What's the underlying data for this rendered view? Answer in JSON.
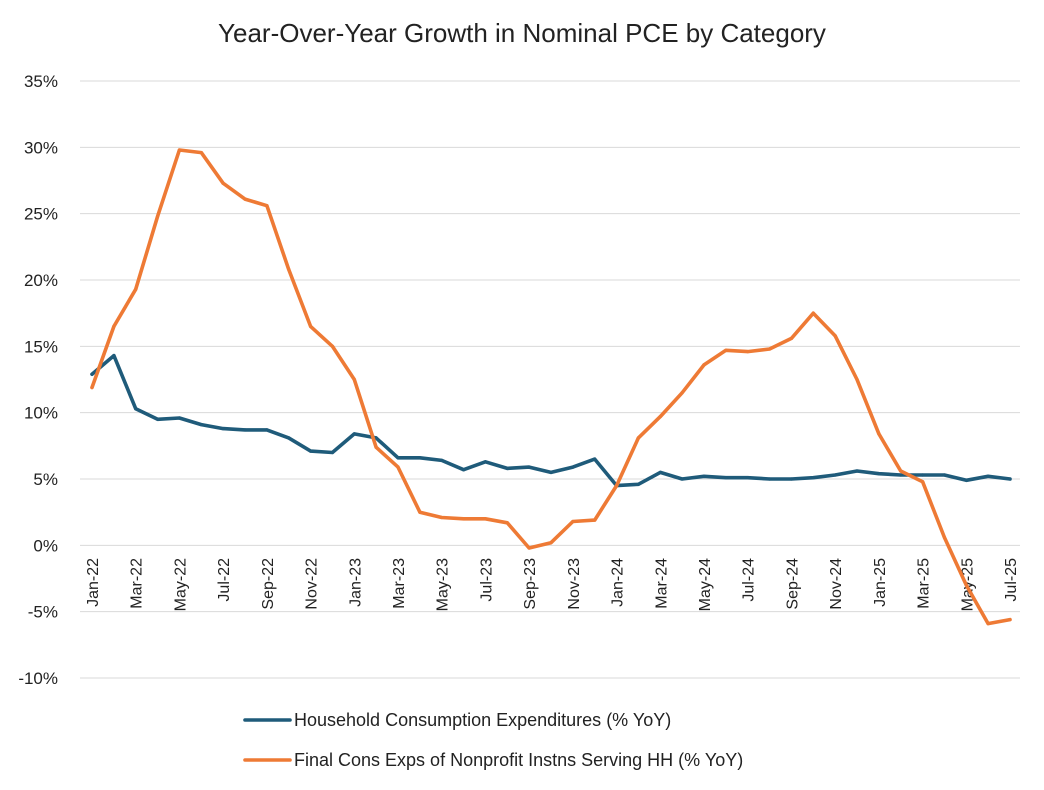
{
  "chart_data": {
    "type": "line",
    "title": "Year-Over-Year Growth in Nominal PCE by Category",
    "xlabel": "",
    "ylabel": "",
    "ylim": [
      -10,
      35
    ],
    "ytick_values": [
      -10,
      -5,
      0,
      5,
      10,
      15,
      20,
      25,
      30,
      35
    ],
    "ytick_labels": [
      "-10%",
      "-5%",
      "0%",
      "5%",
      "10%",
      "15%",
      "20%",
      "25%",
      "30%",
      "35%"
    ],
    "categories": [
      "Jan-22",
      "Feb-22",
      "Mar-22",
      "Apr-22",
      "May-22",
      "Jun-22",
      "Jul-22",
      "Aug-22",
      "Sep-22",
      "Oct-22",
      "Nov-22",
      "Dec-22",
      "Jan-23",
      "Feb-23",
      "Mar-23",
      "Apr-23",
      "May-23",
      "Jun-23",
      "Jul-23",
      "Aug-23",
      "Sep-23",
      "Oct-23",
      "Nov-23",
      "Dec-23",
      "Jan-24",
      "Feb-24",
      "Mar-24",
      "Apr-24",
      "May-24",
      "Jun-24",
      "Jul-24",
      "Aug-24",
      "Sep-24",
      "Oct-24",
      "Nov-24",
      "Dec-24",
      "Jan-25",
      "Feb-25",
      "Mar-25",
      "Apr-25",
      "May-25",
      "Jun-25",
      "Jul-25"
    ],
    "xtick_labels": [
      "Jan-22",
      "Mar-22",
      "May-22",
      "Jul-22",
      "Sep-22",
      "Nov-22",
      "Jan-23",
      "Mar-23",
      "May-23",
      "Jul-23",
      "Sep-23",
      "Nov-23",
      "Jan-24",
      "Mar-24",
      "May-24",
      "Jul-24",
      "Sep-24",
      "Nov-24",
      "Jan-25",
      "Mar-25",
      "May-25",
      "Jul-25"
    ],
    "series": [
      {
        "name": "Household Consumption Expenditures (% YoY)",
        "color": "#1f5b7a",
        "values": [
          12.9,
          14.3,
          10.3,
          9.5,
          9.6,
          9.1,
          8.8,
          8.7,
          8.7,
          8.1,
          7.1,
          7.0,
          8.4,
          8.1,
          6.6,
          6.6,
          6.4,
          5.7,
          6.3,
          5.8,
          5.9,
          5.5,
          5.9,
          6.5,
          4.5,
          4.6,
          5.5,
          5.0,
          5.2,
          5.1,
          5.1,
          5.0,
          5.0,
          5.1,
          5.3,
          5.6,
          5.4,
          5.3,
          5.3,
          5.3,
          4.9,
          5.2,
          5.0
        ]
      },
      {
        "name": "Final Cons Exps of Nonprofit Instns Serving HH (% YoY)",
        "color": "#ee7a35",
        "values": [
          11.9,
          16.5,
          19.3,
          24.8,
          29.8,
          29.6,
          27.3,
          26.1,
          25.6,
          20.8,
          16.5,
          15.0,
          12.5,
          7.4,
          5.9,
          2.5,
          2.1,
          2.0,
          2.0,
          1.7,
          -0.2,
          0.2,
          1.8,
          1.9,
          4.5,
          8.1,
          9.7,
          11.5,
          13.6,
          14.7,
          14.6,
          14.8,
          15.6,
          17.5,
          15.8,
          12.5,
          8.4,
          5.6,
          4.8,
          0.6,
          -3.0,
          -5.9,
          -5.6
        ]
      }
    ],
    "legend_position": "bottom",
    "grid": "horizontal"
  }
}
